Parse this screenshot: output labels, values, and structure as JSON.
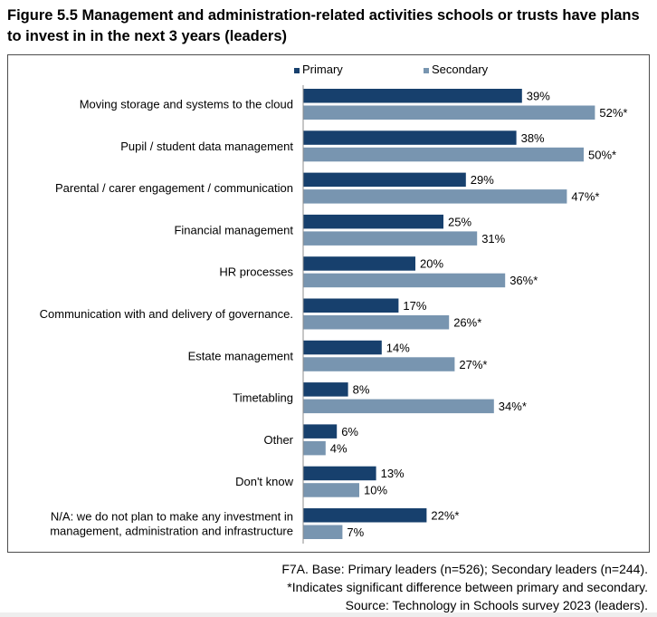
{
  "figure": {
    "title": "Figure 5.5 Management and administration-related activities schools or trusts have plans to invest in in the next 3 years (leaders)"
  },
  "chart_data": {
    "type": "bar",
    "orientation": "horizontal",
    "legend_position": "top",
    "grid": false,
    "xlim": [
      0,
      60
    ],
    "categories": [
      [
        "Moving storage and systems to the cloud"
      ],
      [
        "Pupil / student data management"
      ],
      [
        "Parental / carer engagement / communication"
      ],
      [
        "Financial management"
      ],
      [
        "HR processes"
      ],
      [
        "Communication with and delivery of governance."
      ],
      [
        "Estate management"
      ],
      [
        "Timetabling"
      ],
      [
        "Other"
      ],
      [
        "Don't know"
      ],
      [
        "N/A: we do not plan to make any investment in",
        "management, administration and infrastructure"
      ]
    ],
    "series": [
      {
        "name": "Primary",
        "color": "#17406d",
        "values": [
          39,
          38,
          29,
          25,
          20,
          17,
          14,
          8,
          6,
          13,
          22
        ],
        "labels": [
          "39%",
          "38%",
          "29%",
          "25%",
          "20%",
          "17%",
          "14%",
          "8%",
          "6%",
          "13%",
          "22%*"
        ]
      },
      {
        "name": "Secondary",
        "color": "#7895b0",
        "values": [
          52,
          50,
          47,
          31,
          36,
          26,
          27,
          34,
          4,
          10,
          7
        ],
        "labels": [
          "52%*",
          "50%*",
          "47%*",
          "31%",
          "36%*",
          "26%*",
          "27%*",
          "34%*",
          "4%",
          "10%",
          "7%"
        ]
      }
    ]
  },
  "notes": {
    "base": "F7A. Base: Primary leaders (n=526); Secondary leaders (n=244).",
    "significance": "*Indicates significant difference between primary and secondary.",
    "source": "Source: Technology in Schools survey 2023 (leaders)."
  }
}
